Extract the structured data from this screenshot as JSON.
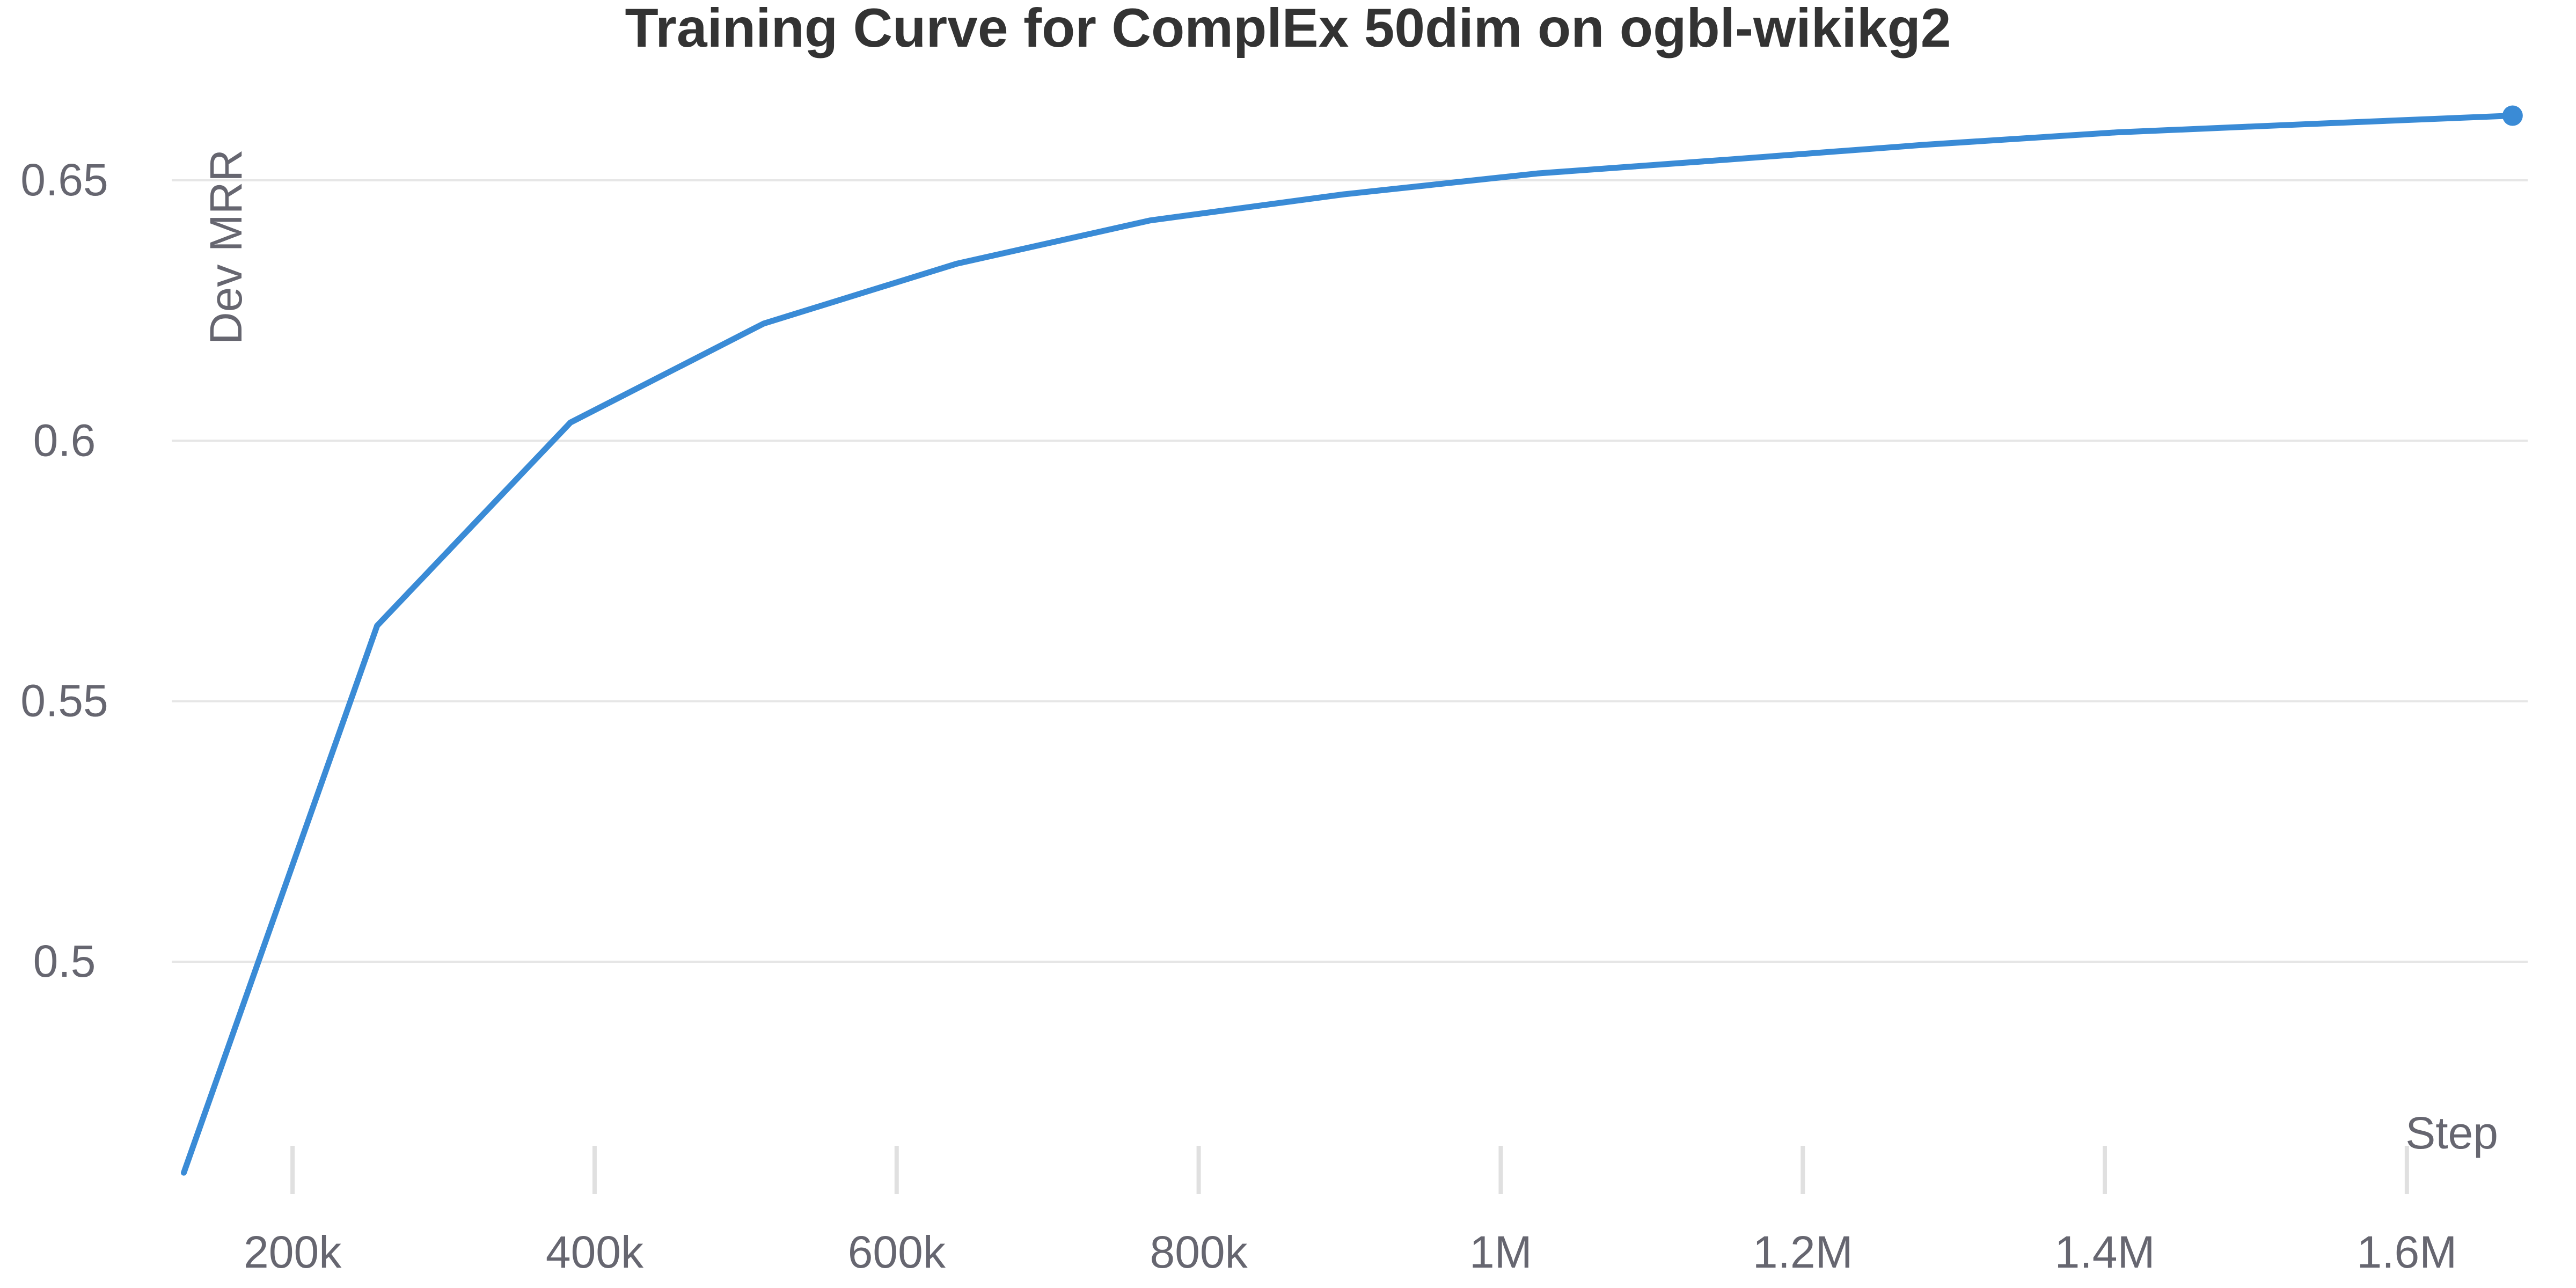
{
  "chart_data": {
    "type": "line",
    "title": "Training Curve for ComplEx 50dim on ogbl-wikikg2",
    "xlabel": "Step",
    "ylabel": "Dev MRR",
    "xlim": [
      120000,
      1680000
    ],
    "ylim": [
      0.459,
      0.664
    ],
    "x_ticks": [
      200000,
      400000,
      600000,
      800000,
      1000000,
      1200000,
      1400000,
      1600000
    ],
    "x_tick_labels": [
      "200k",
      "400k",
      "600k",
      "800k",
      "1M",
      "1.2M",
      "1.4M",
      "1.6M"
    ],
    "y_ticks": [
      0.5,
      0.55,
      0.6,
      0.65
    ],
    "y_tick_labels": [
      "0.5",
      "0.55",
      "0.6",
      "0.65"
    ],
    "grid": true,
    "series": [
      {
        "name": "Dev MRR",
        "color": "#3a8bd6",
        "x": [
          128000,
          256000,
          384000,
          512000,
          640000,
          768000,
          896000,
          1024000,
          1152000,
          1280000,
          1408000,
          1536000,
          1670000
        ],
        "values": [
          0.4595,
          0.5645,
          0.6035,
          0.6225,
          0.634,
          0.6423,
          0.6473,
          0.6513,
          0.654,
          0.6568,
          0.6592,
          0.6608,
          0.6624
        ]
      }
    ]
  }
}
